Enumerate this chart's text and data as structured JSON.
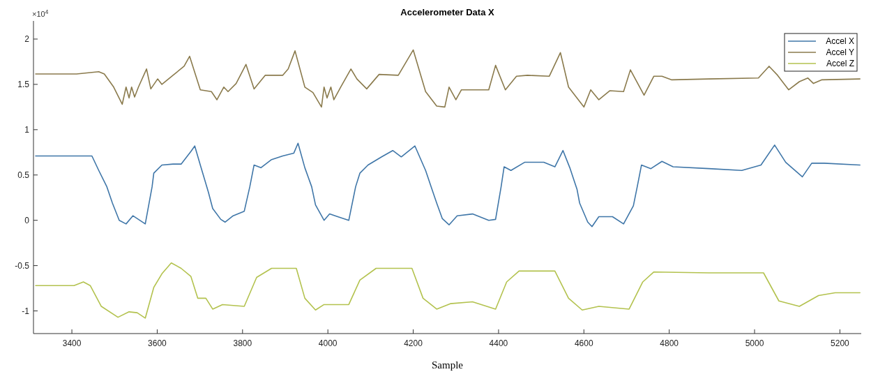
{
  "chart_data": {
    "type": "line",
    "title": "Accelerometer Data X",
    "xlabel": "Sample",
    "annotations": [
      "×10$^{4}$"
    ],
    "xlim": [
      3310,
      5250
    ],
    "xticks": [
      3400,
      3600,
      3800,
      4000,
      4200,
      4400,
      4600,
      4800,
      5000,
      5200
    ],
    "ylim": [
      -1.25,
      2.2
    ],
    "yticks": [
      -1,
      -0.5,
      0,
      0.5,
      1,
      1.5,
      2
    ],
    "grid": false,
    "legend": "top right",
    "marker": "none",
    "line_style": "solid",
    "series": [
      {
        "name": "Accel X",
        "color": "#3f76a8",
        "x": [
          3315,
          3431,
          3447,
          3463,
          3482,
          3495,
          3511,
          3527,
          3543,
          3556,
          3572,
          3588,
          3592,
          3611,
          3637,
          3656,
          3679,
          3688,
          3701,
          3720,
          3730,
          3749,
          3759,
          3778,
          3804,
          3817,
          3827,
          3843,
          3868,
          3894,
          3920,
          3930,
          3946,
          3962,
          3971,
          3991,
          4004,
          4023,
          4049,
          4065,
          4075,
          4094,
          4126,
          4152,
          4172,
          4204,
          4229,
          4242,
          4255,
          4268,
          4284,
          4303,
          4339,
          4377,
          4393,
          4406,
          4413,
          4429,
          4461,
          4506,
          4532,
          4551,
          4567,
          4584,
          4590,
          4609,
          4619,
          4635,
          4667,
          4693,
          4716,
          4725,
          4735,
          4757,
          4783,
          4809,
          4893,
          4970,
          5015,
          5047,
          5073,
          5112,
          5134,
          5163,
          5247
        ],
        "values": [
          0.71,
          0.71,
          0.71,
          0.55,
          0.37,
          0.19,
          0.0,
          -0.04,
          0.05,
          0.01,
          -0.04,
          0.37,
          0.52,
          0.61,
          0.62,
          0.62,
          0.76,
          0.82,
          0.61,
          0.31,
          0.13,
          0.01,
          -0.02,
          0.05,
          0.1,
          0.37,
          0.61,
          0.58,
          0.67,
          0.71,
          0.74,
          0.85,
          0.58,
          0.37,
          0.17,
          0.0,
          0.07,
          0.04,
          0.0,
          0.37,
          0.52,
          0.61,
          0.7,
          0.77,
          0.7,
          0.82,
          0.55,
          0.37,
          0.19,
          0.02,
          -0.05,
          0.05,
          0.07,
          0.0,
          0.01,
          0.37,
          0.59,
          0.55,
          0.64,
          0.64,
          0.59,
          0.77,
          0.58,
          0.34,
          0.19,
          -0.02,
          -0.07,
          0.04,
          0.04,
          -0.04,
          0.16,
          0.37,
          0.61,
          0.57,
          0.65,
          0.59,
          0.57,
          0.55,
          0.61,
          0.83,
          0.64,
          0.48,
          0.63,
          0.63,
          0.61
        ]
      },
      {
        "name": "Accel Y",
        "color": "#8a7a4c",
        "x": [
          3315,
          3411,
          3463,
          3476,
          3498,
          3518,
          3527,
          3534,
          3540,
          3547,
          3556,
          3575,
          3585,
          3601,
          3611,
          3637,
          3663,
          3676,
          3701,
          3727,
          3740,
          3756,
          3766,
          3785,
          3808,
          3827,
          3853,
          3894,
          3907,
          3923,
          3946,
          3965,
          3985,
          3991,
          3998,
          4007,
          4014,
          4030,
          4054,
          4068,
          4091,
          4120,
          4165,
          4200,
          4229,
          4255,
          4274,
          4284,
          4300,
          4313,
          4377,
          4393,
          4416,
          4442,
          4468,
          4519,
          4545,
          4564,
          4600,
          4616,
          4635,
          4661,
          4693,
          4709,
          4741,
          4764,
          4783,
          4806,
          4893,
          5009,
          5034,
          5054,
          5080,
          5105,
          5125,
          5138,
          5157,
          5247
        ],
        "values": [
          1.615,
          1.615,
          1.64,
          1.615,
          1.47,
          1.28,
          1.47,
          1.35,
          1.47,
          1.36,
          1.47,
          1.67,
          1.45,
          1.56,
          1.5,
          1.6,
          1.7,
          1.81,
          1.44,
          1.42,
          1.33,
          1.47,
          1.42,
          1.51,
          1.72,
          1.45,
          1.6,
          1.6,
          1.67,
          1.87,
          1.47,
          1.41,
          1.25,
          1.47,
          1.35,
          1.47,
          1.33,
          1.47,
          1.67,
          1.56,
          1.45,
          1.61,
          1.6,
          1.88,
          1.42,
          1.26,
          1.25,
          1.47,
          1.33,
          1.44,
          1.44,
          1.71,
          1.44,
          1.59,
          1.6,
          1.59,
          1.85,
          1.47,
          1.25,
          1.44,
          1.33,
          1.43,
          1.42,
          1.66,
          1.38,
          1.59,
          1.59,
          1.55,
          1.56,
          1.57,
          1.7,
          1.6,
          1.44,
          1.53,
          1.57,
          1.51,
          1.55,
          1.56
        ]
      },
      {
        "name": "Accel Z",
        "color": "#b3c24e",
        "x": [
          3315,
          3405,
          3427,
          3443,
          3469,
          3508,
          3534,
          3553,
          3572,
          3592,
          3611,
          3633,
          3656,
          3679,
          3695,
          3714,
          3730,
          3753,
          3804,
          3833,
          3868,
          3926,
          3946,
          3971,
          3991,
          4049,
          4075,
          4113,
          4197,
          4223,
          4255,
          4287,
          4339,
          4393,
          4419,
          4448,
          4532,
          4564,
          4596,
          4635,
          4706,
          4738,
          4764,
          4893,
          5021,
          5057,
          5105,
          5150,
          5189,
          5247
        ],
        "values": [
          -0.72,
          -0.72,
          -0.68,
          -0.72,
          -0.95,
          -1.07,
          -1.01,
          -1.02,
          -1.08,
          -0.74,
          -0.59,
          -0.47,
          -0.53,
          -0.62,
          -0.86,
          -0.86,
          -0.98,
          -0.93,
          -0.95,
          -0.63,
          -0.53,
          -0.53,
          -0.86,
          -0.99,
          -0.93,
          -0.93,
          -0.66,
          -0.53,
          -0.53,
          -0.86,
          -0.98,
          -0.92,
          -0.9,
          -0.98,
          -0.68,
          -0.56,
          -0.56,
          -0.86,
          -0.99,
          -0.95,
          -0.98,
          -0.68,
          -0.57,
          -0.58,
          -0.58,
          -0.89,
          -0.95,
          -0.83,
          -0.8,
          -0.8
        ]
      }
    ]
  }
}
